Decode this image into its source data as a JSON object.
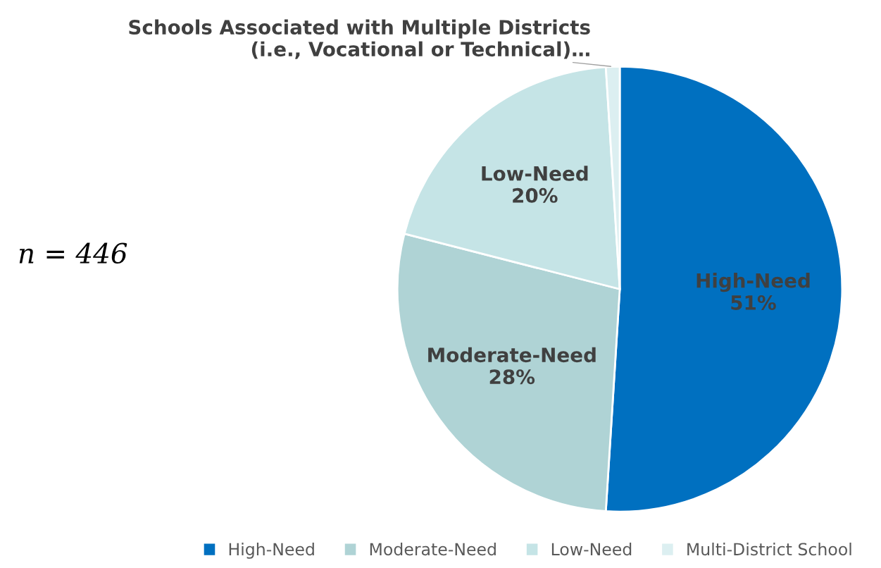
{
  "chart_data": {
    "type": "pie",
    "categories": [
      "High-Need",
      "Moderate-Need",
      "Low-Need",
      "Multi-District School"
    ],
    "values": [
      51,
      28,
      20,
      1
    ],
    "colors": [
      "#0070c0",
      "#afd3d5",
      "#c5e4e6",
      "#dceff1"
    ],
    "value_labels": [
      "High-Need\n51%",
      "Moderate-Need\n28%",
      "Low-Need\n20%",
      "Schools Associated with Multiple Districts\n(i.e., Vocational or Technical)…"
    ],
    "annotations": [
      "n = 446"
    ],
    "legend": "bottom"
  }
}
